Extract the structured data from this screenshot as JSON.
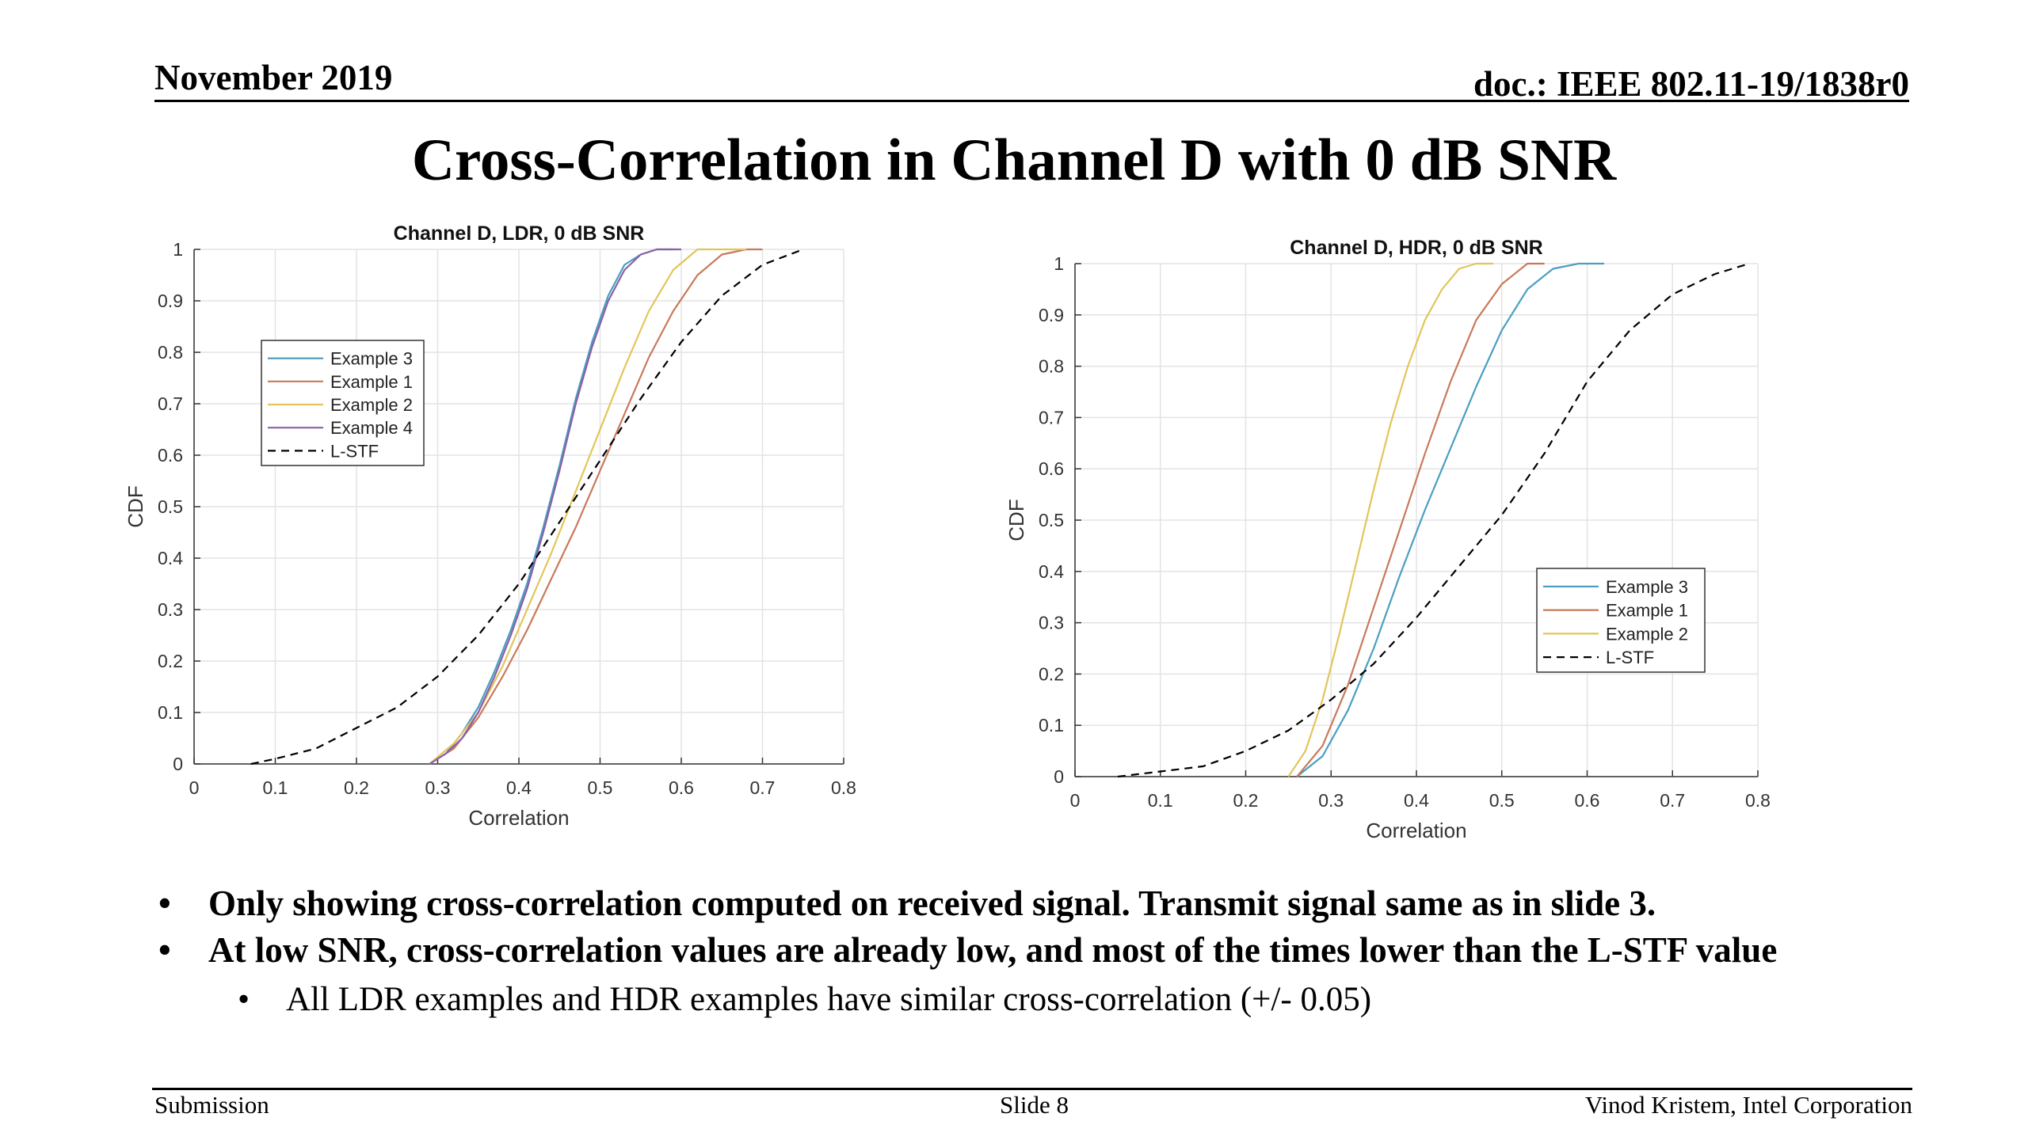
{
  "header": {
    "date": "November 2019",
    "doc": "doc.: IEEE 802.11-19/1838r0"
  },
  "title": "Cross-Correlation in Channel D with 0 dB SNR",
  "chart_data": [
    {
      "type": "line",
      "title": "Channel D, LDR, 0 dB SNR",
      "xlabel": "Correlation",
      "ylabel": "CDF",
      "xlim": [
        0,
        0.8
      ],
      "ylim": [
        0,
        1
      ],
      "xticks": [
        "0",
        "0.1",
        "0.2",
        "0.3",
        "0.4",
        "0.5",
        "0.6",
        "0.7",
        "0.8"
      ],
      "yticks": [
        "0",
        "0.1",
        "0.2",
        "0.3",
        "0.4",
        "0.5",
        "0.6",
        "0.7",
        "0.8",
        "0.9",
        "1"
      ],
      "grid": true,
      "legend_position": "upper-left",
      "series": [
        {
          "name": "Example 3",
          "color": "#4a9fc0",
          "dash": false,
          "x": [
            0.29,
            0.31,
            0.33,
            0.35,
            0.37,
            0.39,
            0.41,
            0.43,
            0.45,
            0.47,
            0.49,
            0.51,
            0.53,
            0.55,
            0.57,
            0.59
          ],
          "y": [
            0,
            0.02,
            0.06,
            0.11,
            0.18,
            0.26,
            0.35,
            0.46,
            0.58,
            0.71,
            0.82,
            0.91,
            0.97,
            0.99,
            1.0,
            1.0
          ]
        },
        {
          "name": "Example 1",
          "color": "#c8795a",
          "dash": false,
          "x": [
            0.29,
            0.32,
            0.35,
            0.38,
            0.41,
            0.44,
            0.47,
            0.5,
            0.53,
            0.56,
            0.59,
            0.62,
            0.65,
            0.68,
            0.7
          ],
          "y": [
            0,
            0.03,
            0.09,
            0.17,
            0.26,
            0.36,
            0.46,
            0.57,
            0.68,
            0.79,
            0.88,
            0.95,
            0.99,
            1.0,
            1.0
          ]
        },
        {
          "name": "Example 2",
          "color": "#e2c55a",
          "dash": false,
          "x": [
            0.29,
            0.32,
            0.35,
            0.38,
            0.41,
            0.44,
            0.47,
            0.5,
            0.53,
            0.56,
            0.59,
            0.62,
            0.65,
            0.68
          ],
          "y": [
            0,
            0.04,
            0.1,
            0.19,
            0.3,
            0.41,
            0.53,
            0.65,
            0.77,
            0.88,
            0.96,
            1.0,
            1.0,
            1.0
          ]
        },
        {
          "name": "Example 4",
          "color": "#8a5fa8",
          "dash": false,
          "x": [
            0.29,
            0.31,
            0.33,
            0.35,
            0.37,
            0.39,
            0.41,
            0.43,
            0.45,
            0.47,
            0.49,
            0.51,
            0.53,
            0.55,
            0.57,
            0.6
          ],
          "y": [
            0,
            0.02,
            0.05,
            0.1,
            0.17,
            0.25,
            0.34,
            0.45,
            0.57,
            0.7,
            0.81,
            0.9,
            0.96,
            0.99,
            1.0,
            1.0
          ]
        },
        {
          "name": "L-STF",
          "color": "#000000",
          "dash": true,
          "x": [
            0.07,
            0.1,
            0.15,
            0.2,
            0.25,
            0.3,
            0.35,
            0.4,
            0.45,
            0.5,
            0.55,
            0.6,
            0.65,
            0.7,
            0.75
          ],
          "y": [
            0,
            0.01,
            0.03,
            0.07,
            0.11,
            0.17,
            0.25,
            0.35,
            0.47,
            0.59,
            0.71,
            0.82,
            0.91,
            0.97,
            1.0
          ]
        }
      ]
    },
    {
      "type": "line",
      "title": "Channel D, HDR, 0 dB SNR",
      "xlabel": "Correlation",
      "ylabel": "CDF",
      "xlim": [
        0,
        0.8
      ],
      "ylim": [
        0,
        1
      ],
      "xticks": [
        "0",
        "0.1",
        "0.2",
        "0.3",
        "0.4",
        "0.5",
        "0.6",
        "0.7",
        "0.8"
      ],
      "yticks": [
        "0",
        "0.1",
        "0.2",
        "0.3",
        "0.4",
        "0.5",
        "0.6",
        "0.7",
        "0.8",
        "0.9",
        "1"
      ],
      "grid": true,
      "legend_position": "lower-right",
      "series": [
        {
          "name": "Example 3",
          "color": "#4a9fc0",
          "dash": false,
          "x": [
            0.26,
            0.29,
            0.32,
            0.35,
            0.38,
            0.41,
            0.44,
            0.47,
            0.5,
            0.53,
            0.56,
            0.59,
            0.62
          ],
          "y": [
            0,
            0.04,
            0.13,
            0.25,
            0.39,
            0.52,
            0.64,
            0.76,
            0.87,
            0.95,
            0.99,
            1.0,
            1.0
          ]
        },
        {
          "name": "Example 1",
          "color": "#c8795a",
          "dash": false,
          "x": [
            0.26,
            0.29,
            0.32,
            0.35,
            0.38,
            0.41,
            0.44,
            0.47,
            0.5,
            0.53,
            0.55
          ],
          "y": [
            0,
            0.06,
            0.18,
            0.33,
            0.48,
            0.63,
            0.77,
            0.89,
            0.96,
            1.0,
            1.0
          ]
        },
        {
          "name": "Example 2",
          "color": "#e2c55a",
          "dash": false,
          "x": [
            0.25,
            0.27,
            0.29,
            0.31,
            0.33,
            0.35,
            0.37,
            0.39,
            0.41,
            0.43,
            0.45,
            0.47,
            0.49
          ],
          "y": [
            0,
            0.05,
            0.15,
            0.28,
            0.42,
            0.56,
            0.69,
            0.8,
            0.89,
            0.95,
            0.99,
            1.0,
            1.0
          ]
        },
        {
          "name": "L-STF",
          "color": "#000000",
          "dash": true,
          "x": [
            0.05,
            0.1,
            0.15,
            0.2,
            0.25,
            0.3,
            0.35,
            0.4,
            0.45,
            0.5,
            0.55,
            0.6,
            0.65,
            0.7,
            0.75,
            0.79
          ],
          "y": [
            0,
            0.01,
            0.02,
            0.05,
            0.09,
            0.15,
            0.22,
            0.31,
            0.41,
            0.51,
            0.63,
            0.77,
            0.87,
            0.94,
            0.98,
            1.0
          ]
        }
      ]
    }
  ],
  "bullets": [
    {
      "text": "Only showing cross-correlation computed on received signal. Transmit signal same as in slide 3."
    },
    {
      "text": "At low SNR, cross-correlation values are already low, and most of the times lower than the L-STF value"
    }
  ],
  "subbullet": "All LDR examples and HDR examples have similar cross-correlation (+/- 0.05)",
  "footer": {
    "left": "Submission",
    "center": "Slide 8",
    "right": "Vinod Kristem, Intel Corporation"
  }
}
